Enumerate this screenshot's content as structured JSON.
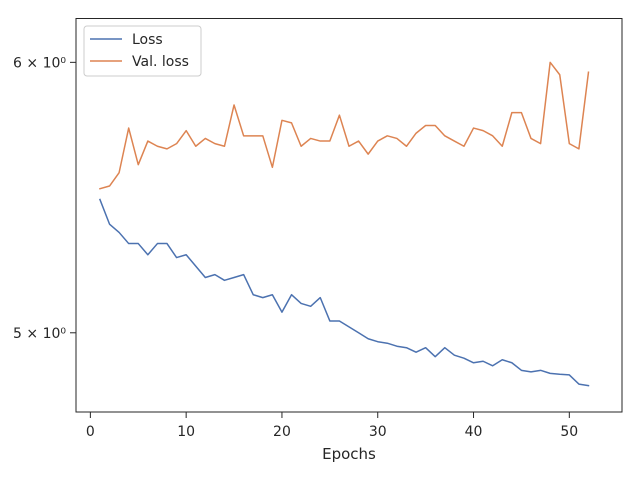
{
  "chart_data": {
    "type": "line",
    "title": "",
    "xlabel": "Epochs",
    "ylabel": "",
    "y_scale": "log",
    "xlim": [
      -1.5,
      55.5
    ],
    "ylim": [
      4.74,
      6.18
    ],
    "x_ticks": [
      0,
      10,
      20,
      30,
      40,
      50
    ],
    "x_tick_labels": [
      "0",
      "10",
      "20",
      "30",
      "40",
      "50"
    ],
    "y_ticks": [
      5,
      6
    ],
    "y_tick_labels": [
      "5 × 10⁰",
      "6 × 10⁰"
    ],
    "grid": false,
    "legend_position": "upper left",
    "colors": {
      "Loss": "#4c72b0",
      "Val. loss": "#dd8452"
    },
    "series": [
      {
        "name": "Loss",
        "x": [
          1,
          2,
          3,
          4,
          5,
          6,
          7,
          8,
          9,
          10,
          11,
          12,
          13,
          14,
          15,
          16,
          17,
          18,
          19,
          20,
          21,
          22,
          23,
          24,
          25,
          26,
          27,
          28,
          29,
          30,
          31,
          32,
          33,
          34,
          35,
          36,
          37,
          38,
          39,
          40,
          41,
          42,
          43,
          44,
          45,
          46,
          47,
          48,
          49,
          50,
          51,
          52
        ],
        "y": [
          5.47,
          5.38,
          5.35,
          5.31,
          5.31,
          5.27,
          5.31,
          5.31,
          5.26,
          5.27,
          5.23,
          5.19,
          5.2,
          5.18,
          5.19,
          5.2,
          5.13,
          5.12,
          5.13,
          5.07,
          5.13,
          5.1,
          5.09,
          5.12,
          5.04,
          5.04,
          5.02,
          5.0,
          4.98,
          4.97,
          4.965,
          4.955,
          4.95,
          4.935,
          4.95,
          4.92,
          4.95,
          4.925,
          4.915,
          4.9,
          4.905,
          4.89,
          4.91,
          4.9,
          4.875,
          4.87,
          4.875,
          4.865,
          4.862,
          4.86,
          4.83,
          4.825
        ]
      },
      {
        "name": "Val. loss",
        "x": [
          1,
          2,
          3,
          4,
          5,
          6,
          7,
          8,
          9,
          10,
          11,
          12,
          13,
          14,
          15,
          16,
          17,
          18,
          19,
          20,
          21,
          22,
          23,
          24,
          25,
          26,
          27,
          28,
          29,
          30,
          31,
          32,
          33,
          34,
          35,
          36,
          37,
          38,
          39,
          40,
          41,
          42,
          43,
          44,
          45,
          46,
          47,
          48,
          49,
          50,
          51,
          52
        ],
        "y": [
          5.51,
          5.52,
          5.57,
          5.74,
          5.6,
          5.69,
          5.67,
          5.66,
          5.68,
          5.73,
          5.67,
          5.7,
          5.68,
          5.67,
          5.83,
          5.71,
          5.71,
          5.71,
          5.59,
          5.77,
          5.76,
          5.67,
          5.7,
          5.69,
          5.69,
          5.79,
          5.67,
          5.69,
          5.64,
          5.69,
          5.71,
          5.7,
          5.67,
          5.72,
          5.75,
          5.75,
          5.71,
          5.69,
          5.67,
          5.74,
          5.73,
          5.71,
          5.67,
          5.8,
          5.8,
          5.7,
          5.68,
          6.0,
          5.95,
          5.68,
          5.66,
          5.96
        ]
      }
    ]
  }
}
